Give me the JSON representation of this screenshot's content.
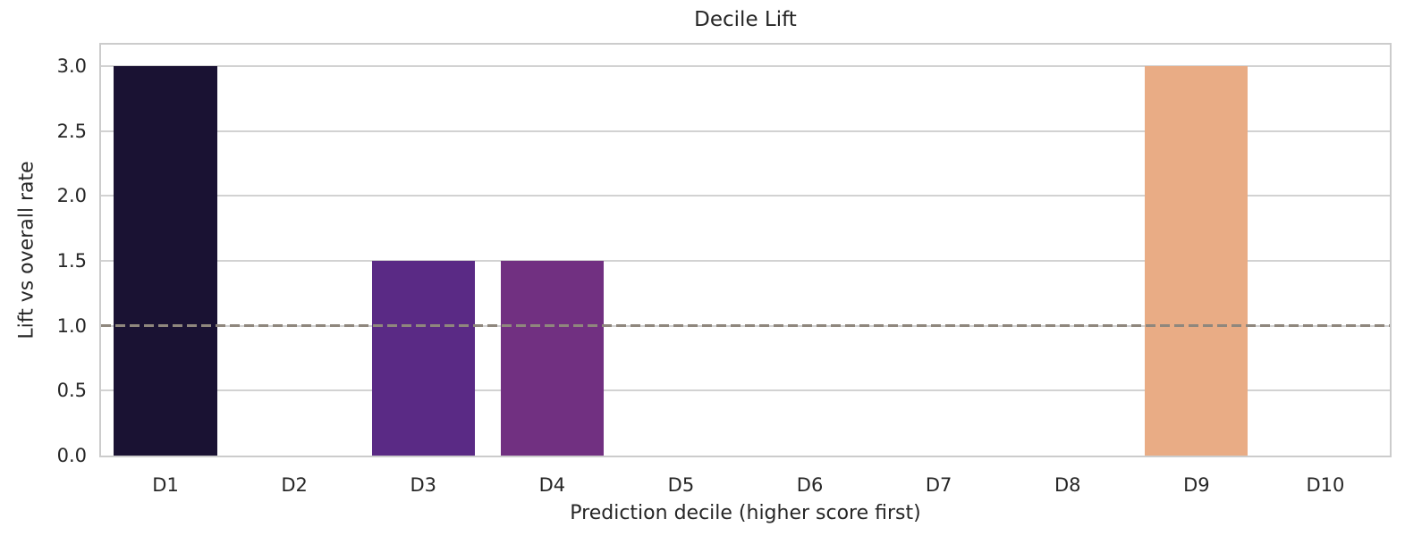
{
  "chart_data": {
    "type": "bar",
    "title": "Decile Lift",
    "xlabel": "Prediction decile (higher score first)",
    "ylabel": "Lift vs overall rate",
    "categories": [
      "D1",
      "D2",
      "D3",
      "D4",
      "D5",
      "D6",
      "D7",
      "D8",
      "D9",
      "D10"
    ],
    "values": [
      3.0,
      0.0,
      1.5,
      1.5,
      0.0,
      0.0,
      0.0,
      0.0,
      3.0,
      0.0
    ],
    "bar_colors": [
      "#1a1233",
      null,
      "#5a2a85",
      "#713081",
      null,
      null,
      null,
      null,
      "#e9ac85",
      null
    ],
    "ylim": [
      0,
      3.164
    ],
    "yticks": [
      0.0,
      0.5,
      1.0,
      1.5,
      2.0,
      2.5,
      3.0
    ],
    "ytick_labels": [
      "0.0",
      "0.5",
      "1.0",
      "1.5",
      "2.0",
      "2.5",
      "3.0"
    ],
    "grid": true,
    "legend": null,
    "bar_width_fraction": 0.8,
    "reference_line": {
      "y": 1.0,
      "style": "dashed",
      "color": "#8f877d"
    }
  },
  "style": {
    "background": "#ffffff",
    "grid_color": "#d2d2d2",
    "spine_color": "#cccccc",
    "text_color": "#262626"
  }
}
